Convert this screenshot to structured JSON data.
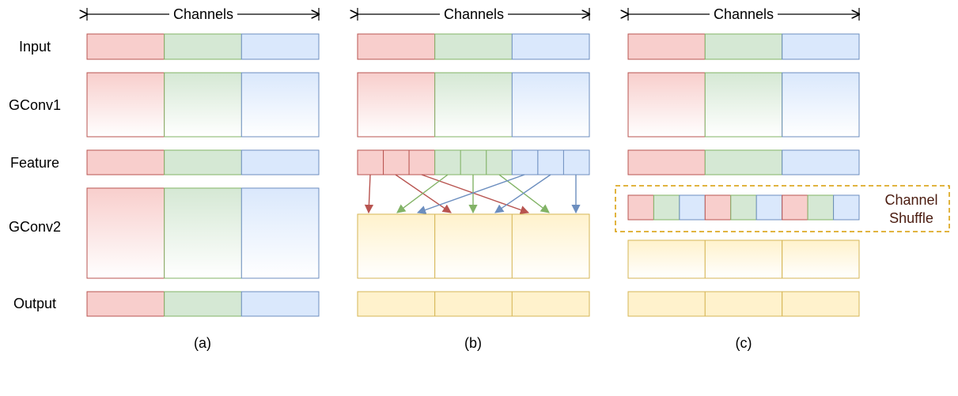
{
  "row_labels": [
    "Input",
    "GConv1",
    "Feature",
    "GConv2",
    "Output"
  ],
  "channels_label": "Channels",
  "captions": [
    "(a)",
    "(b)",
    "(c)"
  ],
  "shuffle_label": [
    "Channel",
    "Shuffle"
  ],
  "colors": {
    "red_fill": "#f8cecc",
    "red_stroke": "#b85450",
    "green_fill": "#d5e8d4",
    "green_stroke": "#82b366",
    "blue_fill": "#dae8fc",
    "blue_stroke": "#6c8ebf",
    "yellow_fill": "#fff2cc",
    "yellow_stroke": "#d6b656",
    "shuffle_border": "#d79b00"
  }
}
